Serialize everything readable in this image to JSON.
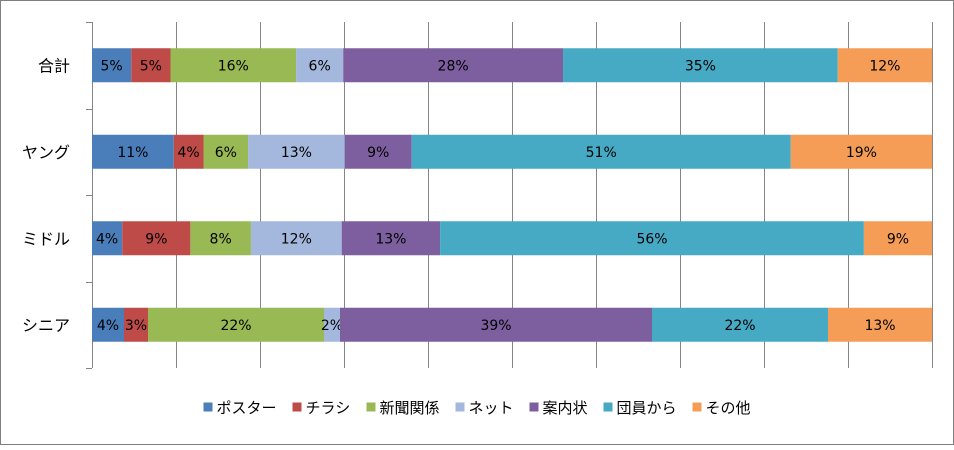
{
  "chart_data": {
    "type": "bar",
    "orientation": "horizontal",
    "stacked": "percent",
    "categories": [
      "合計",
      "ヤング",
      "ミドル",
      "シニア"
    ],
    "series": [
      {
        "name": "ポスター",
        "color": "#4a7ebb",
        "values": [
          5,
          11,
          4,
          4
        ]
      },
      {
        "name": "チラシ",
        "color": "#be4b48",
        "values": [
          5,
          4,
          9,
          3
        ]
      },
      {
        "name": "新聞関係",
        "color": "#98b954",
        "values": [
          16,
          6,
          8,
          22
        ]
      },
      {
        "name": "ネット",
        "color": "#a3b8dc",
        "values": [
          6,
          13,
          12,
          2
        ]
      },
      {
        "name": "案内状",
        "color": "#7d5fa0",
        "values": [
          28,
          9,
          13,
          39
        ]
      },
      {
        "name": "団員から",
        "color": "#46aac5",
        "values": [
          35,
          51,
          56,
          22
        ]
      },
      {
        "name": "その他",
        "color": "#f59d56",
        "values": [
          12,
          19,
          9,
          13
        ]
      }
    ],
    "data_labels": [
      [
        "5%",
        "5%",
        "16%",
        "6%",
        "28%",
        "35%",
        "12%"
      ],
      [
        "11%",
        "4%",
        "6%",
        "13%",
        "9%",
        "51%",
        "19%"
      ],
      [
        "4%",
        "9%",
        "8%",
        "12%",
        "13%",
        "56%",
        "9%"
      ],
      [
        "4%",
        "3%",
        "22%",
        "2%",
        "39%",
        "22%",
        "13%"
      ]
    ],
    "xlim": [
      0,
      100
    ],
    "grid": true,
    "legend": "bottom",
    "title": "",
    "xlabel": "",
    "ylabel": ""
  }
}
